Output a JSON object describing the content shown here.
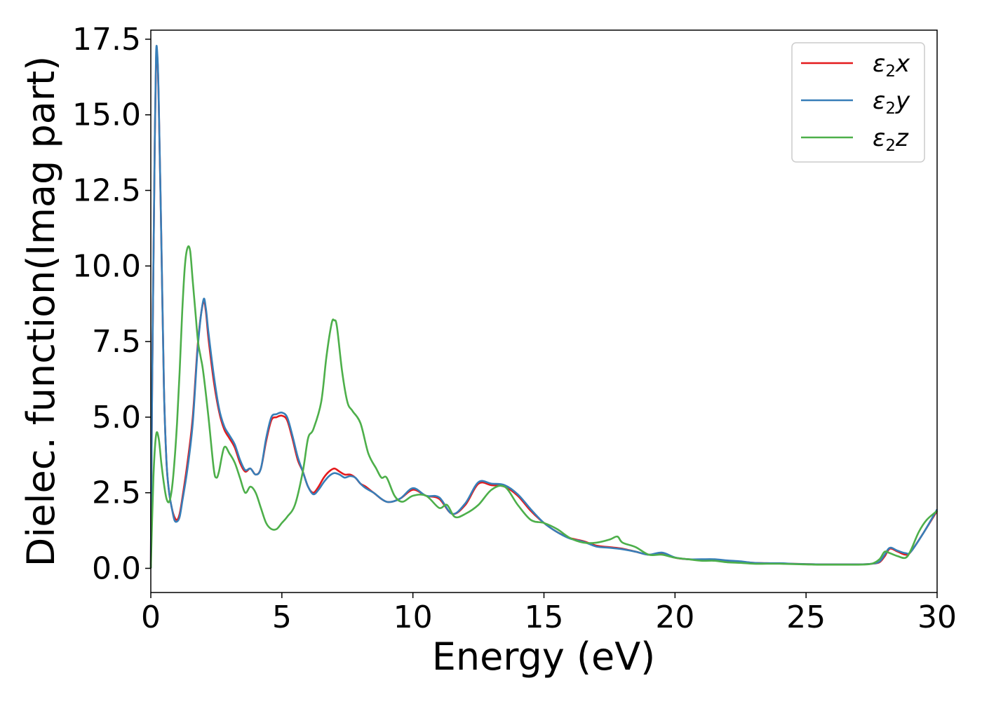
{
  "chart_data": {
    "type": "line",
    "xlabel": "Energy (eV)",
    "ylabel": "Dielec. function(Imag part)",
    "xlim": [
      0,
      30
    ],
    "ylim": [
      -0.8,
      17.8
    ],
    "xticks": [
      "0",
      "5",
      "10",
      "15",
      "20",
      "25",
      "30"
    ],
    "yticks": [
      "0.0",
      "2.5",
      "5.0",
      "7.5",
      "10.0",
      "12.5",
      "15.0",
      "17.5"
    ],
    "grid": false,
    "legend_position": "top-right",
    "series": [
      {
        "name": "ε2x",
        "legend": {
          "base": "ε",
          "sub": "2",
          "suffix": "x"
        },
        "color": "#e41a1c",
        "x": [
          0,
          0.05,
          0.1,
          0.15,
          0.2,
          0.25,
          0.3,
          0.4,
          0.5,
          0.6,
          0.7,
          0.8,
          0.9,
          1.0,
          1.1,
          1.2,
          1.4,
          1.6,
          1.8,
          2.0,
          2.1,
          2.2,
          2.4,
          2.6,
          2.8,
          3.0,
          3.2,
          3.4,
          3.6,
          3.8,
          4.0,
          4.2,
          4.4,
          4.6,
          4.8,
          5.0,
          5.2,
          5.4,
          5.6,
          5.8,
          6.0,
          6.2,
          6.4,
          6.6,
          6.8,
          7.0,
          7.2,
          7.4,
          7.6,
          7.8,
          8.0,
          8.2,
          8.5,
          9.0,
          9.5,
          10.0,
          10.5,
          11.0,
          11.5,
          12.0,
          12.5,
          13.0,
          13.5,
          14.0,
          14.5,
          15.0,
          15.5,
          16.0,
          16.5,
          17.0,
          17.5,
          18.0,
          18.5,
          19.0,
          19.5,
          20.0,
          20.5,
          21.0,
          21.5,
          22.0,
          22.5,
          23.0,
          23.5,
          24.0,
          24.5,
          25.0,
          25.5,
          26.0,
          26.5,
          27.0,
          27.5,
          27.8,
          28.0,
          28.2,
          28.5,
          28.8,
          29.0,
          29.5,
          30.0
        ],
        "y": [
          0,
          6,
          10,
          14,
          16.8,
          16.9,
          15.5,
          11.0,
          6.0,
          3.5,
          2.5,
          2.0,
          1.7,
          1.6,
          1.8,
          2.3,
          3.5,
          5.0,
          7.5,
          8.8,
          8.5,
          7.6,
          6.2,
          5.2,
          4.6,
          4.3,
          4.0,
          3.5,
          3.2,
          3.3,
          3.1,
          3.3,
          4.2,
          4.9,
          5.0,
          5.05,
          4.9,
          4.3,
          3.6,
          3.2,
          2.7,
          2.5,
          2.7,
          3.0,
          3.2,
          3.3,
          3.2,
          3.1,
          3.1,
          3.0,
          2.8,
          2.7,
          2.5,
          2.2,
          2.3,
          2.6,
          2.4,
          2.3,
          1.8,
          2.1,
          2.8,
          2.75,
          2.7,
          2.4,
          1.9,
          1.5,
          1.2,
          1.0,
          0.9,
          0.75,
          0.7,
          0.65,
          0.55,
          0.45,
          0.5,
          0.35,
          0.3,
          0.28,
          0.28,
          0.25,
          0.22,
          0.18,
          0.17,
          0.16,
          0.15,
          0.14,
          0.13,
          0.13,
          0.13,
          0.13,
          0.15,
          0.2,
          0.4,
          0.65,
          0.55,
          0.45,
          0.55,
          1.2,
          1.9
        ]
      },
      {
        "name": "ε2y",
        "legend": {
          "base": "ε",
          "sub": "2",
          "suffix": "y"
        },
        "color": "#377eb8",
        "x": [
          0,
          0.05,
          0.1,
          0.15,
          0.2,
          0.25,
          0.3,
          0.4,
          0.5,
          0.6,
          0.7,
          0.8,
          0.9,
          1.0,
          1.1,
          1.2,
          1.4,
          1.6,
          1.8,
          2.0,
          2.1,
          2.2,
          2.4,
          2.6,
          2.8,
          3.0,
          3.2,
          3.4,
          3.6,
          3.8,
          4.0,
          4.2,
          4.4,
          4.6,
          4.8,
          5.0,
          5.2,
          5.4,
          5.6,
          5.8,
          6.0,
          6.2,
          6.4,
          6.6,
          6.8,
          7.0,
          7.2,
          7.4,
          7.6,
          7.8,
          8.0,
          8.2,
          8.5,
          9.0,
          9.5,
          10.0,
          10.5,
          11.0,
          11.5,
          12.0,
          12.5,
          13.0,
          13.5,
          14.0,
          14.5,
          15.0,
          15.5,
          16.0,
          16.5,
          17.0,
          17.5,
          18.0,
          18.5,
          19.0,
          19.5,
          20.0,
          20.5,
          21.0,
          21.5,
          22.0,
          22.5,
          23.0,
          23.5,
          24.0,
          24.5,
          25.0,
          25.5,
          26.0,
          26.5,
          27.0,
          27.5,
          27.8,
          28.0,
          28.2,
          28.5,
          28.8,
          29.0,
          29.5,
          30.0
        ],
        "y": [
          0,
          6,
          10,
          14,
          17.0,
          17.0,
          15.6,
          11.0,
          6.0,
          3.5,
          2.5,
          2.0,
          1.6,
          1.55,
          1.7,
          2.2,
          3.3,
          4.8,
          7.4,
          8.85,
          8.6,
          7.8,
          6.4,
          5.3,
          4.7,
          4.4,
          4.1,
          3.6,
          3.25,
          3.3,
          3.1,
          3.3,
          4.3,
          5.0,
          5.1,
          5.15,
          5.0,
          4.4,
          3.7,
          3.2,
          2.7,
          2.45,
          2.6,
          2.85,
          3.05,
          3.15,
          3.1,
          3.0,
          3.05,
          3.0,
          2.8,
          2.65,
          2.5,
          2.2,
          2.3,
          2.65,
          2.4,
          2.35,
          1.8,
          2.15,
          2.85,
          2.8,
          2.75,
          2.45,
          1.95,
          1.5,
          1.2,
          0.98,
          0.88,
          0.72,
          0.68,
          0.63,
          0.55,
          0.45,
          0.52,
          0.36,
          0.3,
          0.3,
          0.3,
          0.26,
          0.23,
          0.18,
          0.17,
          0.17,
          0.15,
          0.14,
          0.13,
          0.13,
          0.13,
          0.13,
          0.15,
          0.22,
          0.45,
          0.68,
          0.58,
          0.5,
          0.55,
          1.2,
          1.95
        ]
      },
      {
        "name": "ε2z",
        "legend": {
          "base": "ε",
          "sub": "2",
          "suffix": "z"
        },
        "color": "#4daf4a",
        "x": [
          0,
          0.1,
          0.2,
          0.3,
          0.4,
          0.5,
          0.6,
          0.7,
          0.8,
          0.9,
          1.0,
          1.1,
          1.2,
          1.3,
          1.4,
          1.5,
          1.6,
          1.7,
          1.8,
          1.9,
          2.0,
          2.2,
          2.4,
          2.5,
          2.6,
          2.8,
          3.0,
          3.2,
          3.4,
          3.6,
          3.8,
          4.0,
          4.2,
          4.4,
          4.6,
          4.8,
          5.0,
          5.2,
          5.5,
          5.8,
          6.0,
          6.2,
          6.5,
          6.7,
          6.9,
          7.0,
          7.1,
          7.3,
          7.5,
          7.7,
          8.0,
          8.3,
          8.6,
          8.8,
          9.0,
          9.3,
          9.6,
          10.0,
          10.5,
          11.0,
          11.3,
          11.6,
          12.0,
          12.5,
          13.0,
          13.5,
          14.0,
          14.5,
          15.0,
          15.5,
          16.0,
          16.5,
          17.0,
          17.5,
          17.8,
          18.0,
          18.5,
          19.0,
          19.5,
          20.0,
          20.5,
          21.0,
          21.5,
          22.0,
          22.5,
          23.0,
          23.5,
          24.0,
          24.5,
          25.0,
          25.5,
          26.0,
          26.5,
          27.0,
          27.5,
          27.8,
          28.0,
          28.2,
          28.5,
          28.8,
          29.0,
          29.3,
          29.6,
          30.0
        ],
        "y": [
          0,
          3.0,
          4.4,
          4.3,
          3.5,
          2.8,
          2.3,
          2.2,
          2.6,
          3.5,
          4.8,
          6.5,
          8.5,
          10.0,
          10.6,
          10.5,
          9.5,
          8.5,
          7.5,
          7.0,
          6.5,
          5.0,
          3.3,
          3.0,
          3.2,
          4.0,
          3.8,
          3.5,
          3.0,
          2.5,
          2.7,
          2.5,
          2.0,
          1.5,
          1.3,
          1.3,
          1.5,
          1.7,
          2.1,
          3.2,
          4.3,
          4.6,
          5.5,
          7.0,
          8.1,
          8.2,
          8.0,
          6.5,
          5.5,
          5.2,
          4.8,
          3.8,
          3.3,
          3.0,
          3.0,
          2.4,
          2.2,
          2.4,
          2.4,
          2.0,
          2.1,
          1.7,
          1.8,
          2.1,
          2.6,
          2.7,
          2.1,
          1.6,
          1.5,
          1.3,
          1.0,
          0.85,
          0.85,
          0.95,
          1.05,
          0.85,
          0.7,
          0.45,
          0.45,
          0.35,
          0.3,
          0.25,
          0.25,
          0.2,
          0.18,
          0.15,
          0.15,
          0.15,
          0.14,
          0.13,
          0.12,
          0.12,
          0.12,
          0.12,
          0.15,
          0.3,
          0.55,
          0.5,
          0.4,
          0.35,
          0.6,
          1.2,
          1.6,
          1.9
        ]
      }
    ]
  }
}
